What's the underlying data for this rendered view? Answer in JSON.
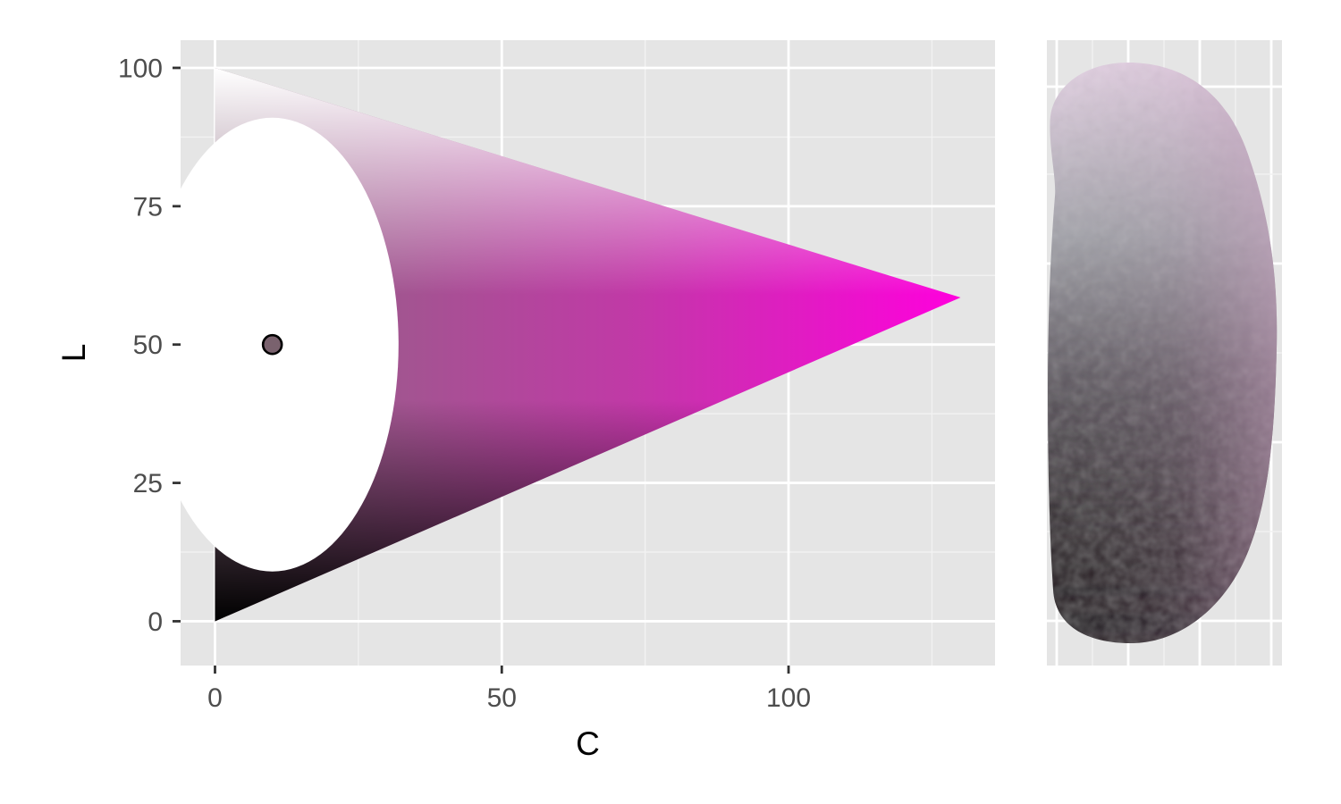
{
  "chart_data": [
    {
      "type": "scatter",
      "title": "",
      "xlabel": "C",
      "ylabel": "L",
      "xlim": [
        -6,
        136
      ],
      "ylim": [
        -8,
        105
      ],
      "x_ticks": [
        0,
        50,
        100
      ],
      "y_ticks": [
        0,
        25,
        50,
        75,
        100
      ],
      "x_tick_labels": [
        "0",
        "50",
        "100"
      ],
      "y_tick_labels": [
        "0",
        "25",
        "50",
        "75",
        "100"
      ],
      "grid": true,
      "legend": "none",
      "gamut": {
        "description_points": [
          [
            0,
            0
          ],
          [
            0,
            100
          ],
          [
            130,
            58.5
          ]
        ],
        "top_color": "#ffffff",
        "peak_color": "#ff00dd",
        "bottom_color": "#000000"
      },
      "exclusion_region": {
        "center": [
          10,
          50
        ],
        "c_radius": 22,
        "l_radius": 41,
        "color": "#ffffff"
      },
      "highlight_point": {
        "C": 10,
        "L": 50,
        "color": "#7a626e"
      }
    },
    {
      "type": "scatter",
      "title": "",
      "xlabel": "",
      "ylabel": "",
      "grid": true,
      "legend": "none",
      "colors": {
        "top": "#e6d4e6",
        "bottom": "#1a0f18",
        "left": "#8f8f8f",
        "right": "#c9a0c0"
      }
    }
  ],
  "colors": {
    "panel_bg": "#e5e5e5",
    "grid_major": "#ffffff",
    "grid_minor": "#f2f2f2",
    "tick_text": "#4d4d4d",
    "axis_title": "#000000"
  }
}
